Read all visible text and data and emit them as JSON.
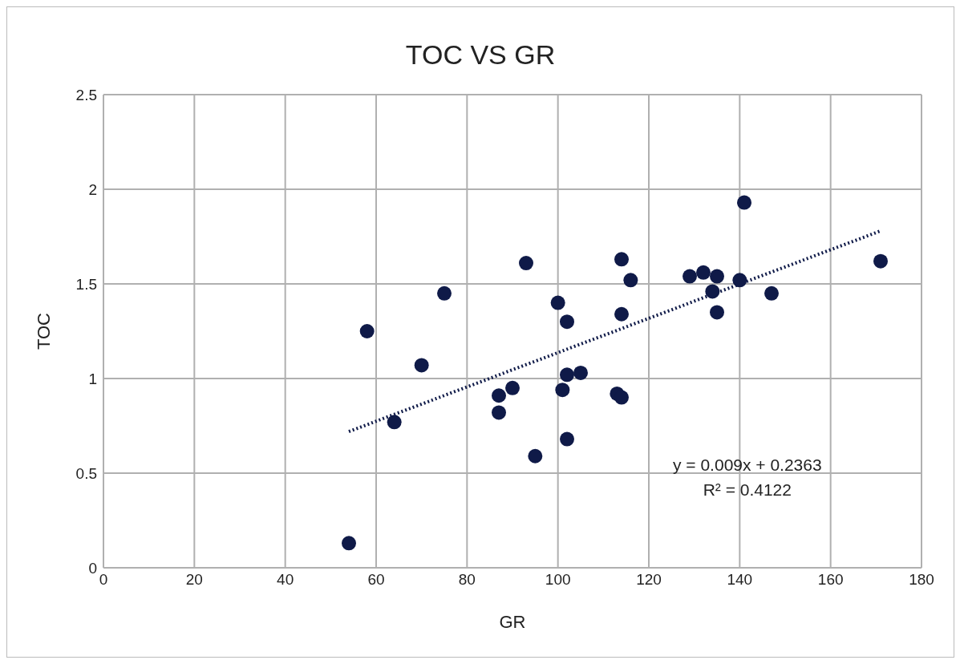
{
  "chart_data": {
    "type": "scatter",
    "title": "TOC VS GR",
    "xlabel": "GR",
    "ylabel": "TOC",
    "xlim": [
      0,
      180
    ],
    "xticks": [
      0,
      20,
      40,
      60,
      80,
      100,
      120,
      140,
      160,
      180
    ],
    "ylim": [
      0,
      2.5
    ],
    "yticks": [
      0,
      0.5,
      1,
      1.5,
      2,
      2.5
    ],
    "grid": true,
    "annotations": [
      "y = 0.009x + 0.2363",
      "R² = 0.4122"
    ],
    "series": [
      {
        "marker": "circle",
        "color": "#0f1a48",
        "x": [
          54,
          58,
          64,
          70,
          75,
          87,
          87,
          90,
          93,
          95,
          100,
          101,
          102,
          102,
          102,
          105,
          113,
          114,
          114,
          114,
          116,
          129,
          132,
          135,
          134,
          135,
          140,
          141,
          147,
          171
        ],
        "values": [
          0.13,
          1.25,
          0.77,
          1.07,
          1.45,
          0.91,
          0.82,
          0.95,
          1.61,
          0.59,
          1.4,
          0.94,
          1.3,
          1.02,
          0.68,
          1.03,
          0.92,
          0.9,
          1.63,
          1.34,
          1.52,
          1.54,
          1.56,
          1.54,
          1.46,
          1.35,
          1.52,
          1.93,
          1.45,
          1.62
        ]
      },
      {
        "type": "line",
        "color": "#0f1a48",
        "line_style": "dotted",
        "x": [
          54,
          171
        ],
        "values": [
          0.72,
          1.78
        ]
      }
    ]
  }
}
